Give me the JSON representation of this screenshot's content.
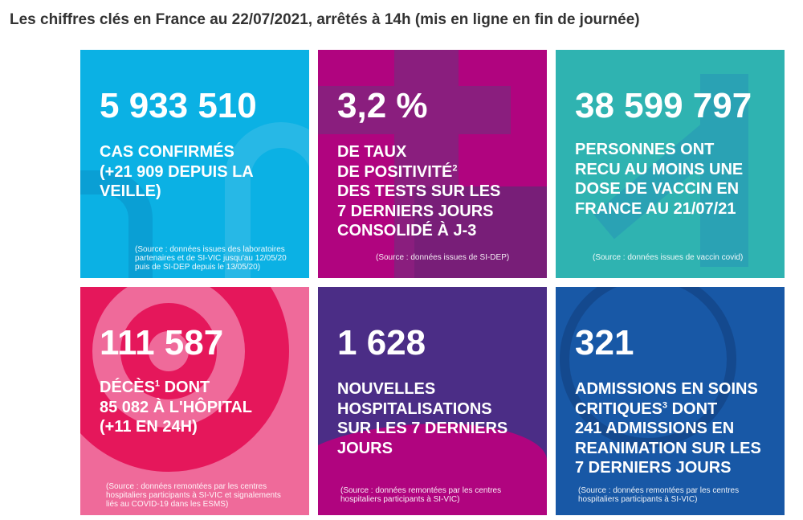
{
  "title": "Les chiffres clés en France au 22/07/2021, arrêtés à 14h (mis en ligne en fin de journée)",
  "tiles": [
    {
      "value": "5 933 510",
      "label": "CAS CONFIRMÉS\n(+21 909 DEPUIS LA\nVEILLE)",
      "source": "(Source : données issues des laboratoires\npartenaires et de SI-VIC jusqu'au 12/05/20\npuis de SI-DEP depuis le 13/05/20)",
      "color": "#0bb1e4"
    },
    {
      "value": "3,2 %",
      "label_a": "DE TAUX\nDE POSITIVITÉ",
      "sup": "2",
      "label_b": "DES TESTS SUR LES\n7 DERNIERS JOURS\nCONSOLIDÉ À J-3",
      "source": "(Source : données issues de SI-DEP)",
      "color": "#b0047f"
    },
    {
      "value": "38 599 797",
      "label": "PERSONNES ONT\nRECU AU MOINS UNE\nDOSE DE VACCIN EN\nFRANCE AU 21/07/21",
      "source": "(Source : données issues de vaccin covid)",
      "color": "#2fb3b1"
    },
    {
      "value": "111 587",
      "label_a": "DÉCÈS",
      "sup": "1",
      "label_b": " DONT\n85 082 À L'HÔPITAL\n(+11 EN 24H)",
      "source": "(Source : données remontées par les centres\nhospitaliers participants à SI-VIC et signalements\nliés au COVID-19 dans les ESMS)",
      "color": "#ef6a9a"
    },
    {
      "value": "1 628",
      "label": "NOUVELLES\nHOSPITALISATIONS\nSUR LES 7 DERNIERS\nJOURS",
      "source": "(Source : données remontées par les centres\nhospitaliers participants à SI-VIC)",
      "color": "#4b2d86"
    },
    {
      "value": "321",
      "label_a": "ADMISSIONS EN SOINS\nCRITIQUES",
      "sup": "3",
      "label_b": " DONT\n241 ADMISSIONS EN\nREANIMATION SUR LES\n7 DERNIERS JOURS",
      "source": "(Source : données remontées par les centres\nhospitaliers participants à SI-VIC)",
      "color": "#1858a6"
    }
  ]
}
